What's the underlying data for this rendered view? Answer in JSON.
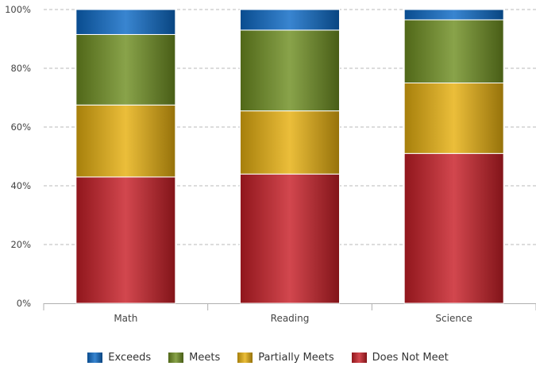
{
  "chart_data": {
    "type": "bar",
    "stacked": true,
    "categories": [
      "Math",
      "Reading",
      "Science"
    ],
    "series": [
      {
        "name": "Does Not Meet",
        "color": "#c81f27",
        "values": [
          43,
          44,
          51
        ]
      },
      {
        "name": "Partially Meets",
        "color": "#e7b00f",
        "values": [
          24.5,
          21.5,
          24
        ]
      },
      {
        "name": "Meets",
        "color": "#6f8f22",
        "values": [
          24,
          27.5,
          21.5
        ]
      },
      {
        "name": "Exceeds",
        "color": "#0d6ac6",
        "values": [
          8.5,
          7,
          3.5
        ]
      }
    ],
    "yticks": [
      "0%",
      "20%",
      "40%",
      "60%",
      "80%",
      "100%"
    ],
    "ylim": [
      0,
      100
    ],
    "grid": true,
    "legend_position": "bottom"
  },
  "legend": [
    {
      "name": "Exceeds",
      "color": "#0d6ac6"
    },
    {
      "name": "Meets",
      "color": "#6f8f22"
    },
    {
      "name": "Partially Meets",
      "color": "#e7b00f"
    },
    {
      "name": "Does Not Meet",
      "color": "#c81f27"
    }
  ]
}
